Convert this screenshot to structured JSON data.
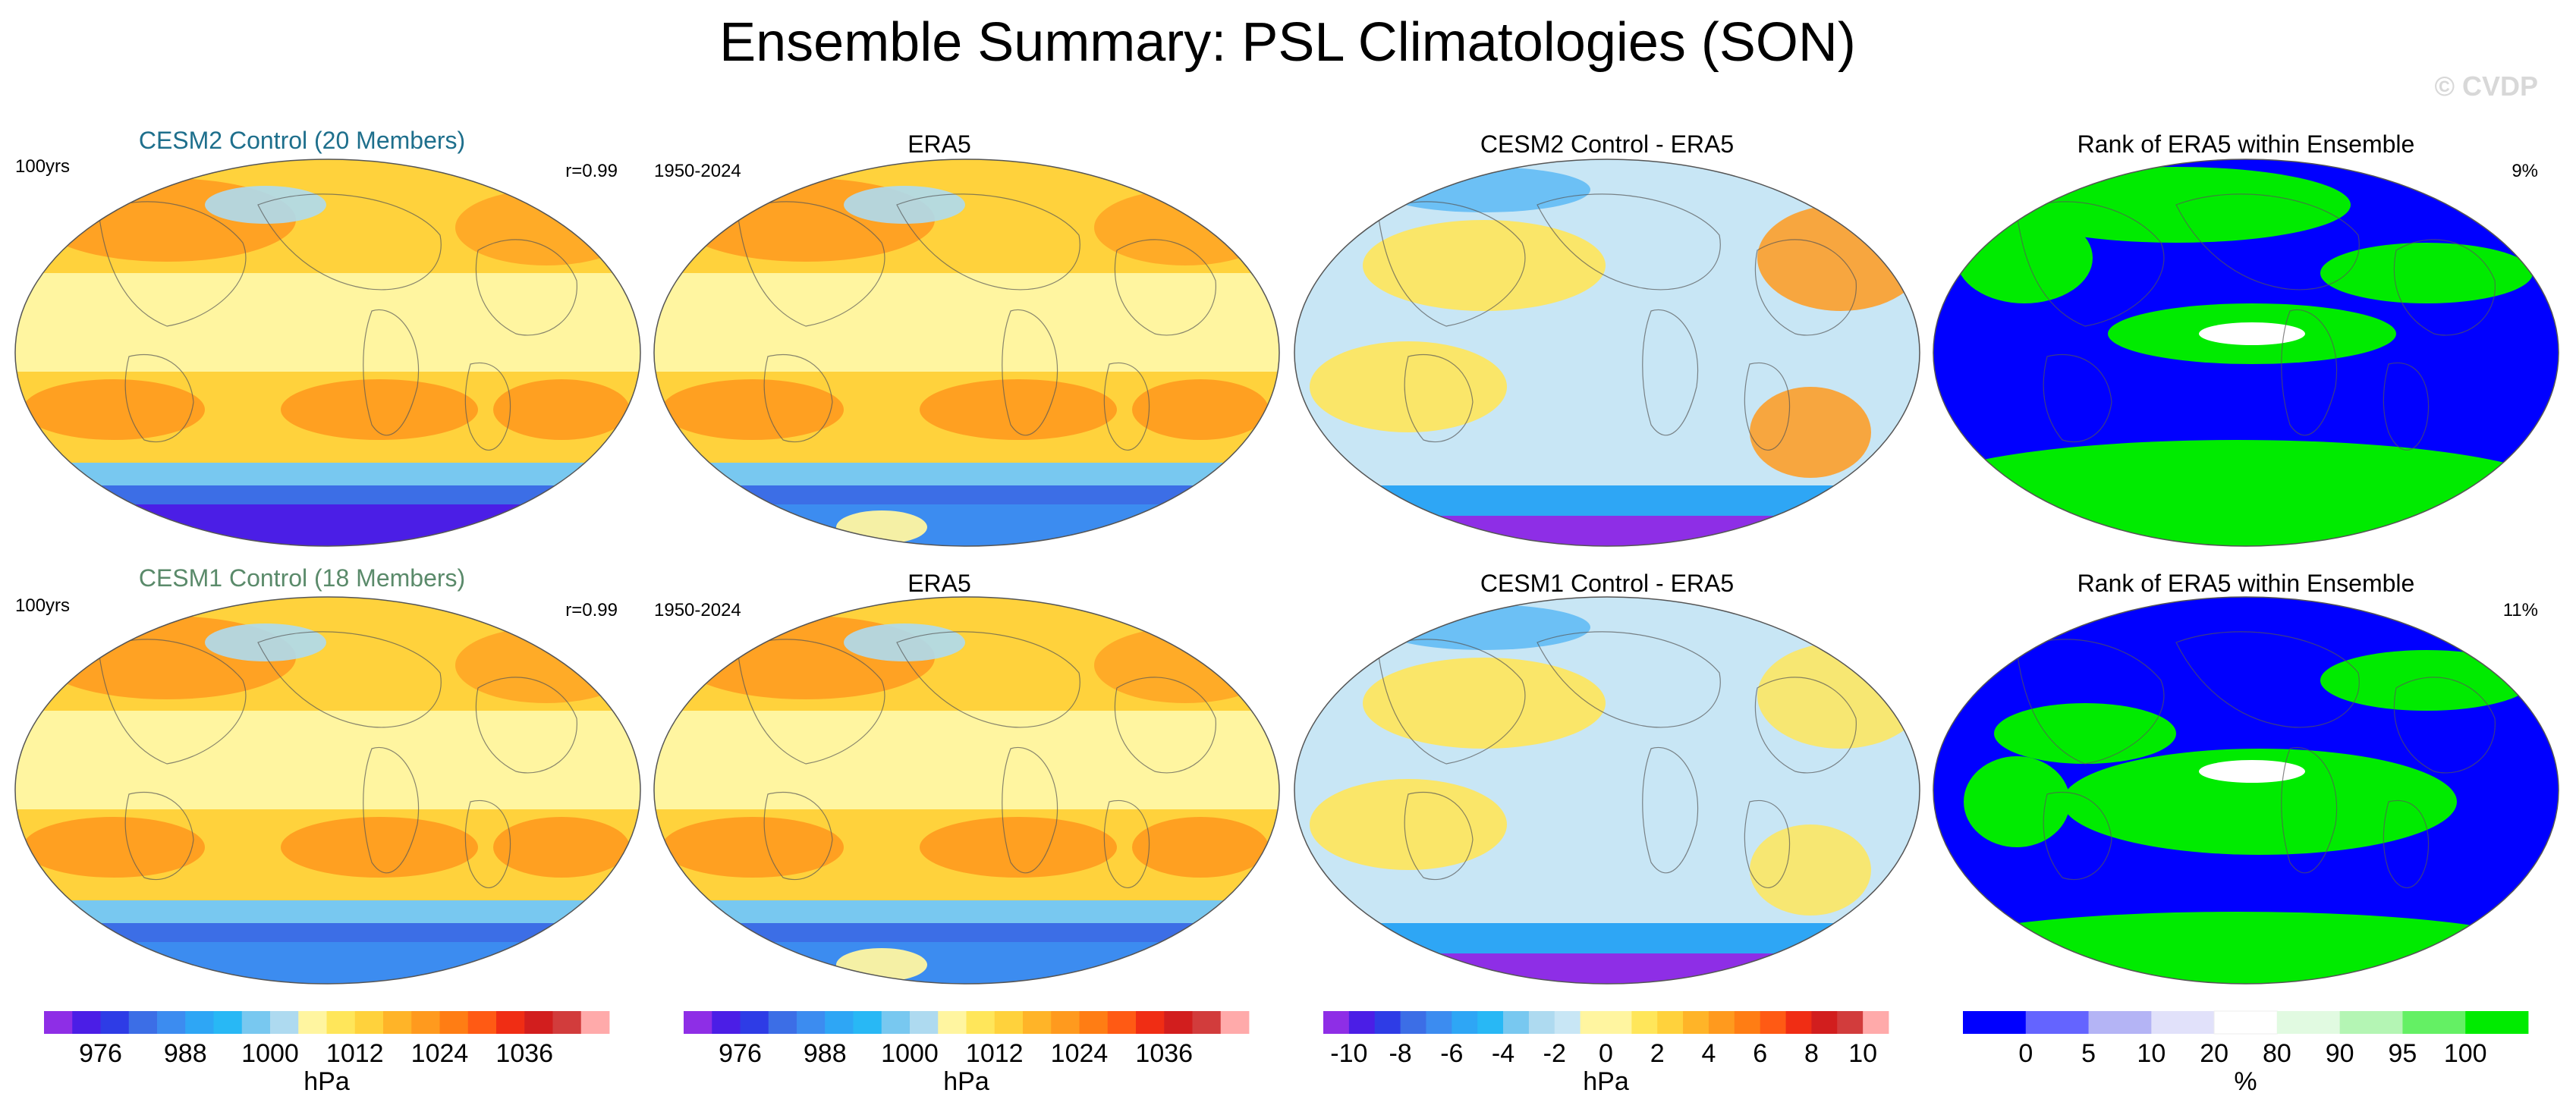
{
  "title": "Ensemble Summary: PSL Climatologies (SON)",
  "watermark": "© CVDP",
  "chart_data": {
    "type": "heatmap",
    "rows": [
      {
        "model_title": "CESM2 Control (20 Members)",
        "model_title_color": "#1e6f8c",
        "model_years": "100yrs",
        "correlation": "r=0.99",
        "obs_title": "ERA5",
        "obs_years": "1950-2024",
        "diff_title": "CESM2 Control - ERA5",
        "rank_title": "Rank of ERA5 within Ensemble",
        "rank_percent": "9%"
      },
      {
        "model_title": "CESM1 Control (18 Members)",
        "model_title_color": "#5a8a6a",
        "model_years": "100yrs",
        "correlation": "r=0.99",
        "obs_title": "ERA5",
        "obs_years": "1950-2024",
        "diff_title": "CESM1 Control - ERA5",
        "rank_title": "Rank of ERA5 within Ensemble",
        "rank_percent": "11%"
      }
    ],
    "colorbars": [
      {
        "unit": "hPa",
        "tick_labels": [
          "976",
          "988",
          "1000",
          "1012",
          "1024",
          "1036"
        ],
        "tick_boundary_index": [
          2,
          5,
          8,
          11,
          14,
          17
        ],
        "colors": [
          "#8e2ee6",
          "#4b1ee6",
          "#2e3ce6",
          "#3c6ee6",
          "#3c8cf0",
          "#2ea6f5",
          "#28b8f5",
          "#78c8f0",
          "#aedaf0",
          "#fff5a0",
          "#ffe65a",
          "#ffd23c",
          "#ffb428",
          "#ff9a1e",
          "#ff7d14",
          "#ff5a14",
          "#f02d14",
          "#d21e1e",
          "#d23c3c",
          "#ffaaaa"
        ]
      },
      {
        "unit": "hPa",
        "tick_labels": [
          "976",
          "988",
          "1000",
          "1012",
          "1024",
          "1036"
        ],
        "tick_boundary_index": [
          2,
          5,
          8,
          11,
          14,
          17
        ],
        "colors": [
          "#8e2ee6",
          "#4b1ee6",
          "#2e3ce6",
          "#3c6ee6",
          "#3c8cf0",
          "#2ea6f5",
          "#28b8f5",
          "#78c8f0",
          "#aedaf0",
          "#fff5a0",
          "#ffe65a",
          "#ffd23c",
          "#ffb428",
          "#ff9a1e",
          "#ff7d14",
          "#ff5a14",
          "#f02d14",
          "#d21e1e",
          "#d23c3c",
          "#ffaaaa"
        ]
      },
      {
        "unit": "hPa",
        "tick_labels": [
          "-10",
          "-8",
          "-6",
          "-4",
          "-2",
          "0",
          "2",
          "4",
          "6",
          "8",
          "10"
        ],
        "tick_boundary_index": [
          1,
          3,
          5,
          7,
          9,
          11,
          13,
          15,
          17,
          19,
          21
        ],
        "colors": [
          "#8e2ee6",
          "#4b1ee6",
          "#2e3ce6",
          "#3c6ee6",
          "#3c8cf0",
          "#2ea6f5",
          "#28b8f5",
          "#78c8f0",
          "#aedaf0",
          "#c8e6f5",
          "#fff5a0",
          "#fff5a0",
          "#ffe65a",
          "#ffd23c",
          "#ffb428",
          "#ff9a1e",
          "#ff7d14",
          "#ff5a14",
          "#f02d14",
          "#d21e1e",
          "#d23c3c",
          "#ffaaaa"
        ]
      },
      {
        "unit": "%",
        "tick_labels": [
          "0",
          "5",
          "10",
          "20",
          "80",
          "90",
          "95",
          "100"
        ],
        "tick_boundary_index": [
          1,
          2,
          3,
          4,
          5,
          6,
          7,
          8
        ],
        "colors": [
          "#0000ff",
          "#6464ff",
          "#b4b4f5",
          "#e1e1fa",
          "#ffffff",
          "#e1fae1",
          "#b4f5b4",
          "#64f064",
          "#00eb00"
        ]
      }
    ],
    "map_fields": {
      "psl": {
        "ocean": "#ffd23c",
        "tropics": "#fff5a0",
        "highs": "#ff9a1e",
        "polar_low": "#3c6ee6",
        "antarctic": "#4b1ee6"
      },
      "diff": {
        "base": "#c8e6f5",
        "warm": "#ffe65a",
        "hot": "#ff9a1e",
        "southern": "#2ea6f5"
      },
      "rank": {
        "low": "#0000ff",
        "high": "#00eb00",
        "mid": "#ffffff"
      }
    }
  }
}
